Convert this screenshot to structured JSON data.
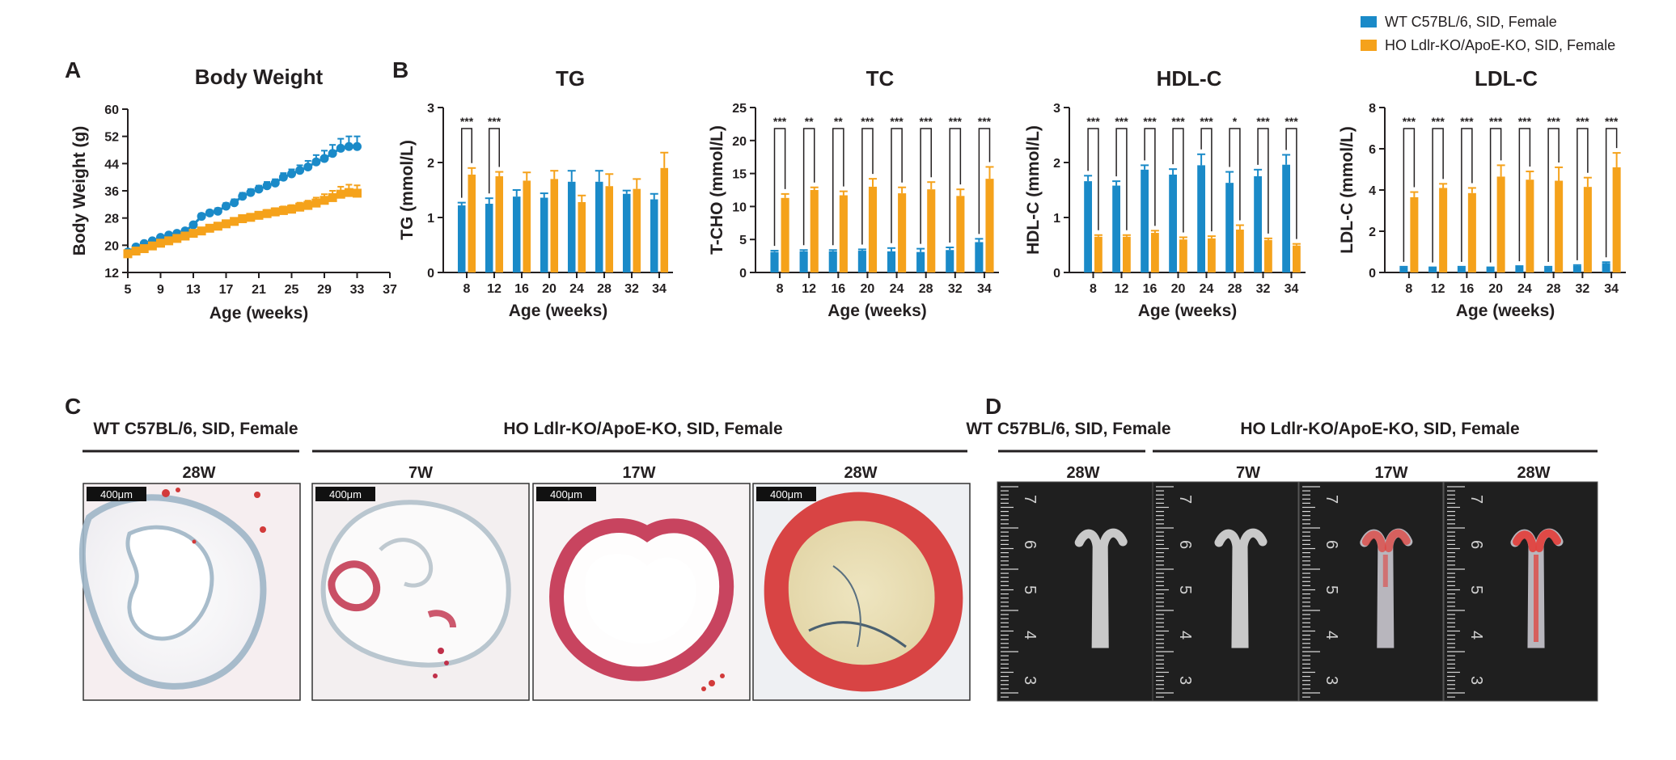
{
  "colors": {
    "wt": "#1a8ac8",
    "ho": "#f5a21b",
    "axis": "#231f20"
  },
  "legend": [
    {
      "label": "WT C57BL/6, SID, Female",
      "color": "#1a8ac8"
    },
    {
      "label": "HO Ldlr-KO/ApoE-KO, SID, Female",
      "color": "#f5a21b"
    }
  ],
  "panel_letters": {
    "a": "A",
    "b": "B",
    "c": "C",
    "d": "D"
  },
  "chart_data": [
    {
      "id": "body-weight",
      "type": "line",
      "title": "Body Weight",
      "xlabel": "Age (weeks)",
      "ylabel": "Body Weight  (g)",
      "xlim": [
        5,
        37
      ],
      "ylim": [
        12,
        60
      ],
      "xticks": [
        5,
        9,
        13,
        17,
        21,
        25,
        29,
        33,
        37
      ],
      "yticks": [
        12,
        20,
        28,
        36,
        44,
        52,
        60
      ],
      "series": [
        {
          "name": "WT C57BL/6, SID, Female",
          "x": [
            5,
            6,
            7,
            8,
            9,
            10,
            11,
            12,
            13,
            14,
            15,
            16,
            17,
            18,
            19,
            20,
            21,
            22,
            23,
            24,
            25,
            26,
            27,
            28,
            29,
            30,
            31,
            32,
            33
          ],
          "y": [
            18,
            19.5,
            20.5,
            21.3,
            22.3,
            23,
            23.5,
            24.2,
            26,
            28.5,
            29.5,
            30,
            31.5,
            32.5,
            34.4,
            35.5,
            36.5,
            37.5,
            38.3,
            40,
            41,
            42,
            43,
            44.5,
            45.5,
            47,
            48.5,
            49,
            49
          ],
          "err": [
            0.5,
            0.5,
            0.5,
            0.5,
            0.6,
            0.6,
            0.6,
            0.7,
            0.7,
            0.8,
            0.8,
            0.9,
            0.9,
            1,
            1,
            1,
            1,
            1.1,
            1.1,
            1.2,
            1.3,
            1.5,
            1.8,
            2,
            2.3,
            2.5,
            2.8,
            3,
            3
          ]
        },
        {
          "name": "HO Ldlr-KO/ApoE-KO, SID, Female",
          "x": [
            5,
            6,
            7,
            8,
            9,
            10,
            11,
            12,
            13,
            14,
            15,
            16,
            17,
            18,
            19,
            20,
            21,
            22,
            23,
            24,
            25,
            26,
            27,
            28,
            29,
            30,
            31,
            32,
            33
          ],
          "y": [
            17.5,
            18.3,
            19,
            19.8,
            20.6,
            21.3,
            22,
            22.7,
            23.5,
            24.2,
            25,
            25.6,
            26.3,
            27,
            27.8,
            28.2,
            28.8,
            29.3,
            29.8,
            30.2,
            30.6,
            31.2,
            31.7,
            32.4,
            33.2,
            34,
            35,
            35.5,
            35.3
          ],
          "err": [
            0.4,
            0.5,
            0.5,
            0.5,
            0.5,
            0.6,
            0.6,
            0.6,
            0.7,
            0.7,
            0.7,
            0.8,
            0.8,
            0.9,
            0.9,
            1,
            1,
            1.1,
            1.1,
            1.2,
            1.2,
            1.3,
            1.4,
            1.6,
            1.8,
            2,
            2.2,
            2.3,
            2.3
          ]
        }
      ]
    },
    {
      "id": "tg",
      "type": "bar",
      "title": "TG",
      "xlabel": "Age (weeks)",
      "ylabel": "TG (mmol/L)",
      "categories": [
        "8",
        "12",
        "16",
        "20",
        "24",
        "28",
        "32",
        "34"
      ],
      "ylim": [
        0,
        3
      ],
      "yticks": [
        0,
        1,
        2,
        3
      ],
      "series": [
        {
          "name": "WT C57BL/6, SID, Female",
          "values": [
            1.22,
            1.25,
            1.38,
            1.36,
            1.65,
            1.65,
            1.43,
            1.33
          ],
          "err": [
            0.05,
            0.1,
            0.12,
            0.08,
            0.2,
            0.2,
            0.06,
            0.1
          ]
        },
        {
          "name": "HO Ldlr-KO/ApoE-KO, SID, Female",
          "values": [
            1.78,
            1.75,
            1.67,
            1.7,
            1.28,
            1.57,
            1.52,
            1.9
          ],
          "err": [
            0.12,
            0.08,
            0.15,
            0.15,
            0.12,
            0.22,
            0.18,
            0.28
          ]
        }
      ],
      "significance": [
        "***",
        "***",
        "",
        "",
        "",
        "",
        "",
        ""
      ]
    },
    {
      "id": "tc",
      "type": "bar",
      "title": "TC",
      "xlabel": "Age (weeks)",
      "ylabel": "T-CHO (mmol/L)",
      "categories": [
        "8",
        "12",
        "16",
        "20",
        "24",
        "28",
        "32",
        "34"
      ],
      "ylim": [
        0,
        25
      ],
      "yticks": [
        0,
        5,
        10,
        15,
        20,
        25
      ],
      "series": [
        {
          "name": "WT C57BL/6, SID, Female",
          "values": [
            3.1,
            3.2,
            3.2,
            3.3,
            3.2,
            3.1,
            3.4,
            4.6
          ],
          "err": [
            0.2,
            0.2,
            0.2,
            0.2,
            0.5,
            0.5,
            0.4,
            0.5
          ]
        },
        {
          "name": "HO Ldlr-KO/ApoE-KO, SID, Female",
          "values": [
            11.3,
            12.5,
            11.7,
            13.0,
            12.0,
            12.6,
            11.6,
            14.2
          ],
          "err": [
            0.6,
            0.4,
            0.6,
            1.2,
            0.9,
            1.1,
            1.0,
            1.8
          ]
        }
      ],
      "significance": [
        "***",
        "**",
        "**",
        "***",
        "***",
        "***",
        "***",
        "***"
      ]
    },
    {
      "id": "hdl",
      "type": "bar",
      "title": "HDL-C",
      "xlabel": "Age (weeks)",
      "ylabel": "HDL-C (mmol/L)",
      "categories": [
        "8",
        "12",
        "16",
        "20",
        "24",
        "28",
        "32",
        "34"
      ],
      "ylim": [
        0,
        3
      ],
      "yticks": [
        0,
        1,
        2,
        3
      ],
      "series": [
        {
          "name": "WT C57BL/6, SID, Female",
          "values": [
            1.66,
            1.58,
            1.87,
            1.78,
            1.95,
            1.63,
            1.75,
            1.96
          ],
          "err": [
            0.1,
            0.08,
            0.08,
            0.1,
            0.2,
            0.2,
            0.12,
            0.18
          ]
        },
        {
          "name": "HO Ldlr-KO/ApoE-KO, SID, Female",
          "values": [
            0.65,
            0.65,
            0.72,
            0.6,
            0.62,
            0.78,
            0.59,
            0.49
          ],
          "err": [
            0.03,
            0.03,
            0.04,
            0.04,
            0.04,
            0.08,
            0.03,
            0.03
          ]
        }
      ],
      "significance": [
        "***",
        "***",
        "***",
        "***",
        "***",
        "*",
        "***",
        "***"
      ]
    },
    {
      "id": "ldl",
      "type": "bar",
      "title": "LDL-C",
      "xlabel": "Age (weeks)",
      "ylabel": "LDL-C (mmol/L)",
      "categories": [
        "8",
        "12",
        "16",
        "20",
        "24",
        "28",
        "32",
        "34"
      ],
      "ylim": [
        0,
        8
      ],
      "yticks": [
        0,
        2,
        4,
        6,
        8
      ],
      "series": [
        {
          "name": "WT C57BL/6, SID, Female",
          "values": [
            0.25,
            0.22,
            0.25,
            0.22,
            0.28,
            0.25,
            0.32,
            0.45
          ],
          "err": [
            0.03,
            0.03,
            0.03,
            0.03,
            0.03,
            0.03,
            0.04,
            0.05
          ]
        },
        {
          "name": "HO Ldlr-KO/ApoE-KO, SID, Female",
          "values": [
            3.65,
            4.1,
            3.85,
            4.65,
            4.5,
            4.45,
            4.15,
            5.1
          ],
          "err": [
            0.25,
            0.2,
            0.25,
            0.55,
            0.4,
            0.65,
            0.45,
            0.7
          ]
        }
      ],
      "significance": [
        "***",
        "***",
        "***",
        "***",
        "***",
        "***",
        "***",
        "***"
      ]
    }
  ],
  "histology": {
    "group_wt": "WT C57BL/6, SID, Female",
    "group_ho": "HO Ldlr-KO/ApoE-KO, SID, Female",
    "timepoints": [
      "28W",
      "7W",
      "17W",
      "28W"
    ],
    "scale_bar": "400μm"
  },
  "aorta": {
    "group_wt": "WT C57BL/6,  SID, Female",
    "group_ho": "HO Ldlr-KO/ApoE-KO,  SID, Female",
    "timepoints": [
      "28W",
      "7W",
      "17W",
      "28W"
    ],
    "ruler_numbers": [
      "7",
      "6",
      "5",
      "4",
      "3"
    ]
  }
}
